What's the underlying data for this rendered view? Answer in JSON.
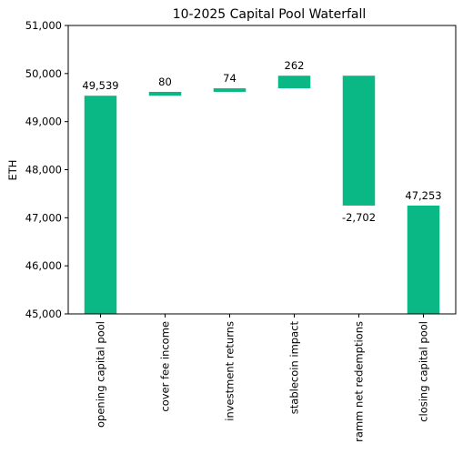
{
  "chart_data": {
    "type": "bar",
    "subtype": "waterfall",
    "title": "10-2025 Capital Pool Waterfall",
    "xlabel": "",
    "ylabel": "ETH",
    "ylim": [
      45000,
      51000
    ],
    "yticks": [
      45000,
      46000,
      47000,
      48000,
      49000,
      50000,
      51000
    ],
    "ytick_labels": [
      "45,000",
      "46,000",
      "47,000",
      "48,000",
      "49,000",
      "50,000",
      "51,000"
    ],
    "categories": [
      "opening capital pool",
      "cover fee income",
      "investment returns",
      "stablecoin impact",
      "ramm net redemptions",
      "closing capital pool"
    ],
    "bars": [
      {
        "category": "opening capital pool",
        "kind": "total",
        "start": 45000,
        "end": 49539,
        "label": "49,539"
      },
      {
        "category": "cover fee income",
        "kind": "change",
        "start": 49539,
        "end": 49619,
        "label": "80"
      },
      {
        "category": "investment returns",
        "kind": "change",
        "start": 49619,
        "end": 49693,
        "label": "74"
      },
      {
        "category": "stablecoin impact",
        "kind": "change",
        "start": 49693,
        "end": 49955,
        "label": "262"
      },
      {
        "category": "ramm net redemptions",
        "kind": "change",
        "start": 49955,
        "end": 47253,
        "label": "-2,702"
      },
      {
        "category": "closing capital pool",
        "kind": "total",
        "start": 45000,
        "end": 47253,
        "label": "47,253"
      }
    ],
    "bar_color": "#0ab885",
    "grid": false,
    "legend": "none"
  }
}
